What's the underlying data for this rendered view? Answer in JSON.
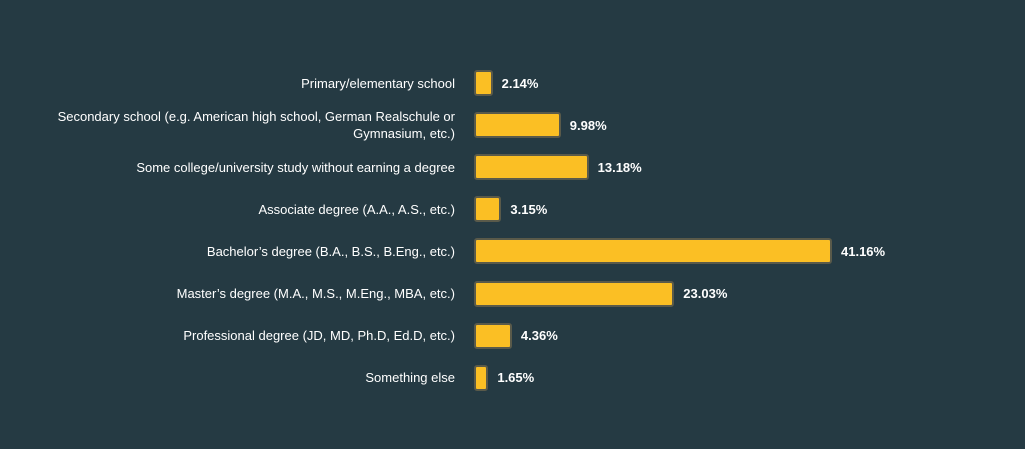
{
  "colors": {
    "background": "#253a43",
    "bar": "#fbbf24",
    "bar_border": "#5a5a4a",
    "text": "#ffffff"
  },
  "chart_data": {
    "type": "bar",
    "orientation": "horizontal",
    "categories": [
      "Primary/elementary school",
      "Secondary school (e.g. American high school, German Realschule or Gymnasium, etc.)",
      "Some college/university study without earning a degree",
      "Associate degree (A.A., A.S., etc.)",
      "Bachelor’s degree (B.A., B.S., B.Eng., etc.)",
      "Master’s degree (M.A., M.S., M.Eng., MBA, etc.)",
      "Professional degree (JD, MD, Ph.D, Ed.D, etc.)",
      "Something else"
    ],
    "values": [
      2.14,
      9.98,
      13.18,
      3.15,
      41.16,
      23.03,
      4.36,
      1.65
    ],
    "value_labels": [
      "2.14%",
      "9.98%",
      "13.18%",
      "3.15%",
      "41.16%",
      "23.03%",
      "4.36%",
      "1.65%"
    ],
    "xlim": [
      0,
      41.16
    ],
    "grid": false,
    "legend": "none"
  }
}
